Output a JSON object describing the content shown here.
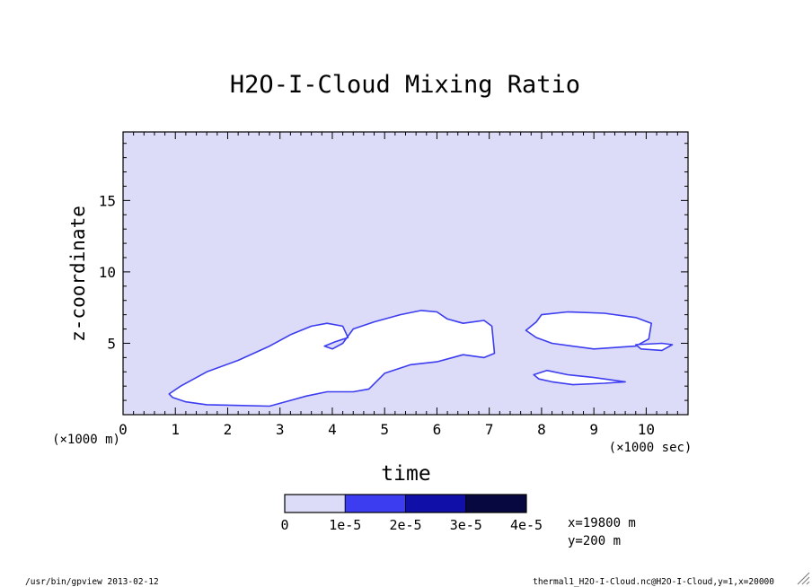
{
  "chart_data": {
    "type": "heatmap",
    "title": "H2O-I-Cloud Mixing Ratio",
    "xlabel": "time",
    "ylabel": "z-coordinate",
    "x_unit": "(×1000 sec)",
    "y_unit": "(×1000 m)",
    "xlim": [
      0,
      10.8
    ],
    "ylim": [
      0,
      19.8
    ],
    "x_ticks": [
      "0",
      "1",
      "2",
      "3",
      "4",
      "5",
      "6",
      "7",
      "8",
      "9",
      "10"
    ],
    "y_ticks": [
      "5",
      "10",
      "15"
    ],
    "background_level": "0 to 1e-5",
    "colorbar": {
      "labels": [
        "0",
        "1e-5",
        "2e-5",
        "3e-5",
        "4e-5"
      ],
      "colors": [
        "#dcdcf8",
        "#3c3cf0",
        "#1010a8",
        "#080840"
      ]
    },
    "regions": [
      {
        "name": "main-cloud",
        "description": "white (missing / no-data) region",
        "polygon": [
          [
            0.88,
            1.45
          ],
          [
            0.95,
            1.2
          ],
          [
            1.2,
            0.9
          ],
          [
            1.6,
            0.7
          ],
          [
            2.2,
            0.65
          ],
          [
            2.8,
            0.6
          ],
          [
            3.2,
            1.0
          ],
          [
            3.5,
            1.3
          ],
          [
            3.9,
            1.6
          ],
          [
            4.2,
            1.6
          ],
          [
            4.4,
            1.6
          ],
          [
            4.7,
            1.8
          ],
          [
            5.0,
            2.9
          ],
          [
            5.5,
            3.5
          ],
          [
            6.0,
            3.7
          ],
          [
            6.5,
            4.2
          ],
          [
            6.9,
            4.0
          ],
          [
            7.1,
            4.3
          ],
          [
            7.05,
            6.2
          ],
          [
            6.9,
            6.6
          ],
          [
            6.5,
            6.4
          ],
          [
            6.2,
            6.7
          ],
          [
            6.0,
            7.2
          ],
          [
            5.7,
            7.3
          ],
          [
            5.3,
            7.0
          ],
          [
            4.8,
            6.5
          ],
          [
            4.4,
            6.0
          ],
          [
            4.2,
            5.0
          ],
          [
            4.0,
            4.6
          ],
          [
            3.85,
            4.8
          ],
          [
            4.05,
            5.1
          ],
          [
            4.3,
            5.4
          ],
          [
            4.2,
            6.2
          ],
          [
            3.9,
            6.4
          ],
          [
            3.6,
            6.2
          ],
          [
            3.2,
            5.6
          ],
          [
            2.8,
            4.8
          ],
          [
            2.2,
            3.8
          ],
          [
            1.6,
            3.0
          ],
          [
            1.1,
            2.0
          ]
        ]
      },
      {
        "name": "upper-right-cloud",
        "description": "white (missing / no-data) region",
        "polygon": [
          [
            7.7,
            5.9
          ],
          [
            7.9,
            6.5
          ],
          [
            8.0,
            7.0
          ],
          [
            8.5,
            7.2
          ],
          [
            9.2,
            7.1
          ],
          [
            9.8,
            6.8
          ],
          [
            10.1,
            6.4
          ],
          [
            10.05,
            5.3
          ],
          [
            9.8,
            4.8
          ],
          [
            9.0,
            4.6
          ],
          [
            8.2,
            5.0
          ],
          [
            7.9,
            5.4
          ]
        ]
      },
      {
        "name": "thin-strip",
        "description": "white (missing / no-data) region",
        "polygon": [
          [
            9.8,
            4.9
          ],
          [
            10.3,
            5.0
          ],
          [
            10.5,
            4.9
          ],
          [
            10.3,
            4.5
          ],
          [
            9.9,
            4.6
          ]
        ]
      },
      {
        "name": "lower-right-cloud",
        "description": "white (missing / no-data) region",
        "polygon": [
          [
            7.85,
            2.8
          ],
          [
            8.1,
            3.1
          ],
          [
            8.5,
            2.8
          ],
          [
            9.0,
            2.6
          ],
          [
            9.6,
            2.3
          ],
          [
            9.2,
            2.2
          ],
          [
            8.6,
            2.1
          ],
          [
            8.2,
            2.3
          ],
          [
            7.95,
            2.5
          ]
        ]
      }
    ]
  },
  "annotations": {
    "coord_x": "x=19800 m",
    "coord_y": "y=200 m"
  },
  "footer": {
    "left": "/usr/bin/gpview  2013-02-12",
    "right": "thermal1_H2O-I-Cloud.nc@H2O-I-Cloud,y=1,x=20000"
  }
}
